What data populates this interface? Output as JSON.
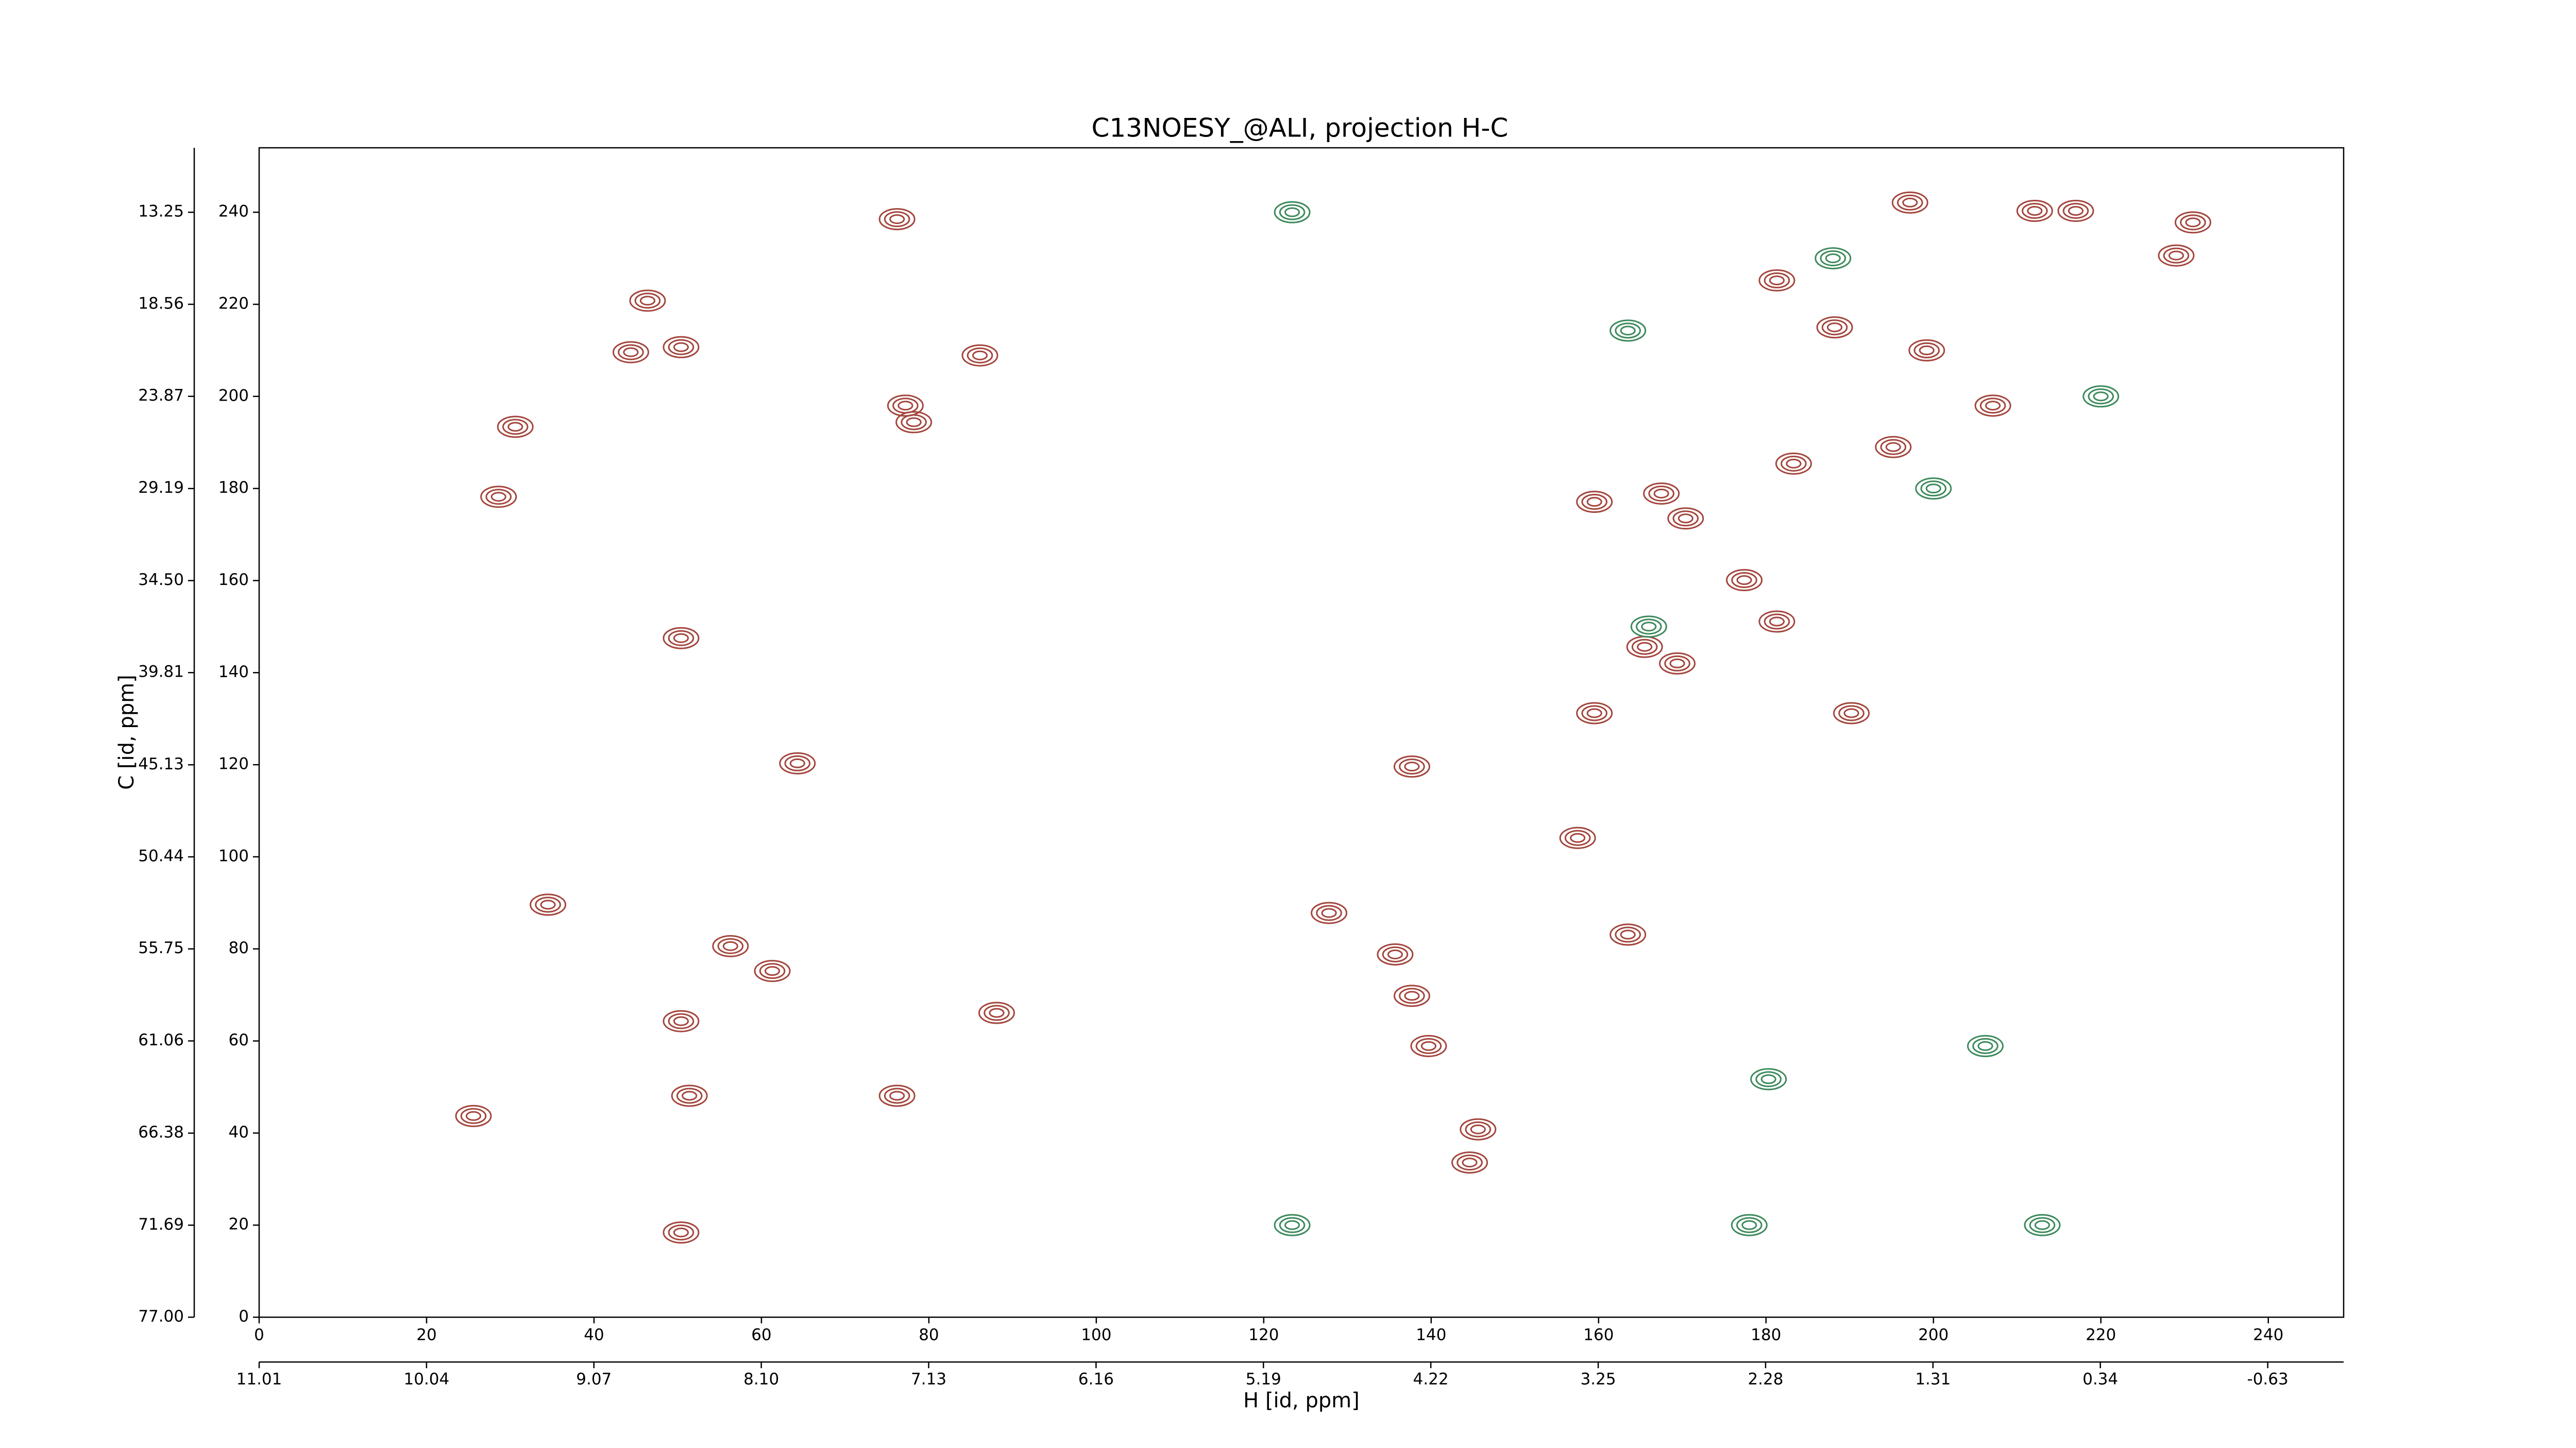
{
  "chart_data": {
    "type": "scatter",
    "title": "C13NOESY_@ALI, projection H-C",
    "xlabel": "H [id, ppm]",
    "ylabel": "C [id, ppm]",
    "xlim": [
      0,
      249
    ],
    "ylim": [
      0,
      254
    ],
    "xticks": [
      0,
      20,
      40,
      60,
      80,
      100,
      120,
      140,
      160,
      180,
      200,
      220,
      240
    ],
    "yticks": [
      0,
      20,
      40,
      60,
      80,
      100,
      120,
      140,
      160,
      180,
      200,
      220,
      240
    ],
    "x2lim": [
      11.01,
      -1.07
    ],
    "x2ticks": [
      11.01,
      10.04,
      9.07,
      {
        "value": 8.1,
        "label": "8.10"
      },
      7.13,
      6.16,
      5.19,
      4.22,
      3.25,
      2.28,
      1.31,
      0.34,
      -0.63
    ],
    "y2lim": [
      77,
      9.53
    ],
    "y2ticks": [
      {
        "value": 77,
        "label": "77.00"
      },
      71.69,
      66.38,
      61.06,
      55.75,
      50.44,
      45.13,
      39.81,
      {
        "value": 34.5,
        "label": "34.50"
      },
      29.19,
      23.87,
      18.56,
      13.25
    ],
    "series": [
      {
        "color": "#a3463d",
        "x": [
          46.4,
          44.4,
          50.4,
          77.2,
          78.2,
          86.1,
          76.2,
          197.2,
          212.1,
          217,
          181.3,
          188.2,
          199.2,
          207.1,
          195.2,
          183.3,
          159.5,
          167.5,
          170.4,
          177.4,
          181.3,
          165.5,
          169.4,
          159.5,
          137.7,
          157.5,
          163.5,
          127.8,
          135.7,
          137.7,
          139.7,
          145.6,
          144.6,
          56.3,
          34.5,
          50.4,
          61.3,
          50.4,
          190.2,
          229,
          231,
          30.6,
          28.6,
          64.3,
          88.1,
          76.2,
          51.4,
          25.6,
          50.4
        ],
        "y": [
          220.8,
          209.6,
          210.7,
          198,
          194.4,
          208.9,
          238.5,
          242.1,
          240.3,
          240.3,
          225.2,
          215,
          210,
          198,
          189,
          185.4,
          177.1,
          178.9,
          173.5,
          160.1,
          151.1,
          145.6,
          142,
          131.2,
          119.6,
          104.1,
          83.1,
          87.8,
          78.8,
          69.8,
          58.9,
          40.8,
          33.6,
          80.6,
          89.6,
          64.3,
          75.2,
          147.5,
          131.2,
          230.6,
          237.8,
          193.4,
          178.2,
          120.3,
          66.1,
          48.1,
          48.1,
          43.7,
          18.4
        ]
      },
      {
        "color": "#3d8a5c",
        "x": [
          163.5,
          166,
          180.3,
          206.2,
          213,
          178,
          200,
          220,
          188,
          123.4,
          123.4
        ],
        "y": [
          214.3,
          150,
          51.7,
          58.9,
          20,
          20,
          180,
          200,
          230,
          240,
          20
        ]
      }
    ]
  }
}
